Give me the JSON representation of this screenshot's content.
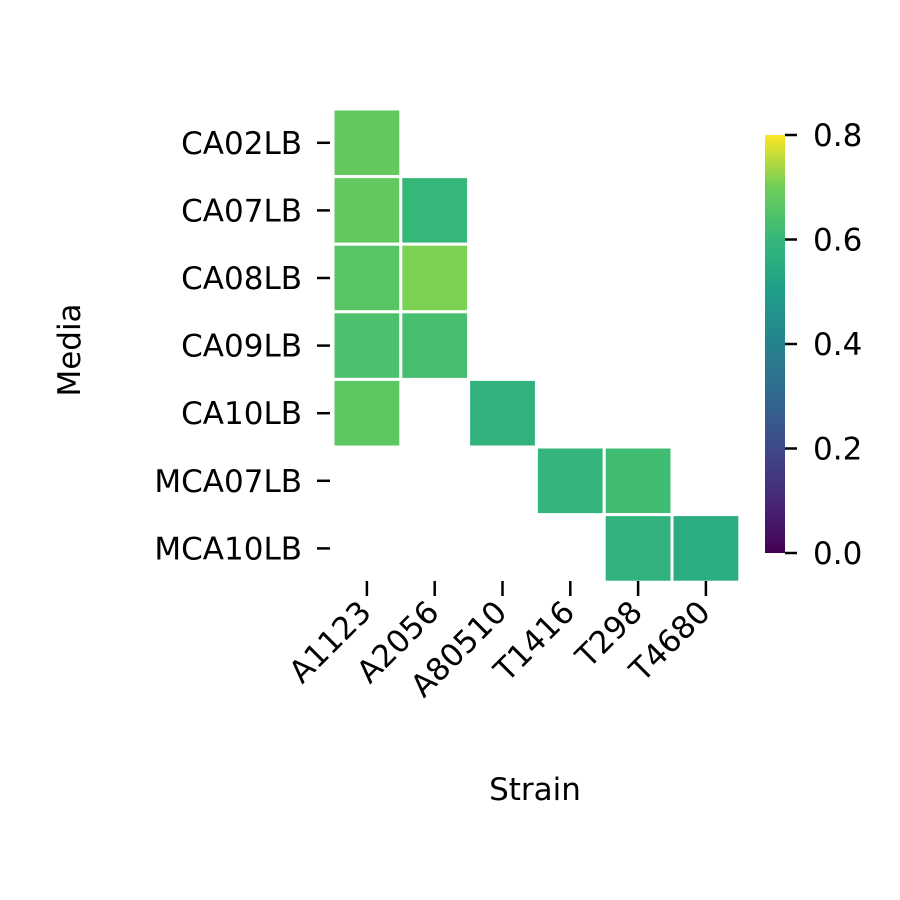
{
  "chart_data": {
    "type": "heatmap",
    "title": "",
    "xlabel": "Strain",
    "ylabel": "Media",
    "x_categories": [
      "A1123",
      "A2056",
      "A80510",
      "T1416",
      "T298",
      "T4680"
    ],
    "y_categories": [
      "CA02LB",
      "CA07LB",
      "CA08LB",
      "CA09LB",
      "CA10LB",
      "MCA07LB",
      "MCA10LB"
    ],
    "values": [
      [
        0.68,
        null,
        null,
        null,
        null,
        null
      ],
      [
        0.68,
        0.6,
        null,
        null,
        null,
        null
      ],
      [
        0.66,
        0.71,
        null,
        null,
        null,
        null
      ],
      [
        0.64,
        0.63,
        null,
        null,
        null,
        null
      ],
      [
        0.67,
        null,
        0.58,
        null,
        null,
        null
      ],
      [
        null,
        null,
        null,
        0.59,
        0.62,
        null
      ],
      [
        null,
        null,
        null,
        null,
        0.58,
        0.56
      ]
    ],
    "colorbar": {
      "colormap": "viridis",
      "range": [
        0.0,
        0.8
      ],
      "ticks": [
        "0.0",
        "0.2",
        "0.4",
        "0.6",
        "0.8"
      ]
    },
    "grid": false,
    "legend": "right"
  }
}
